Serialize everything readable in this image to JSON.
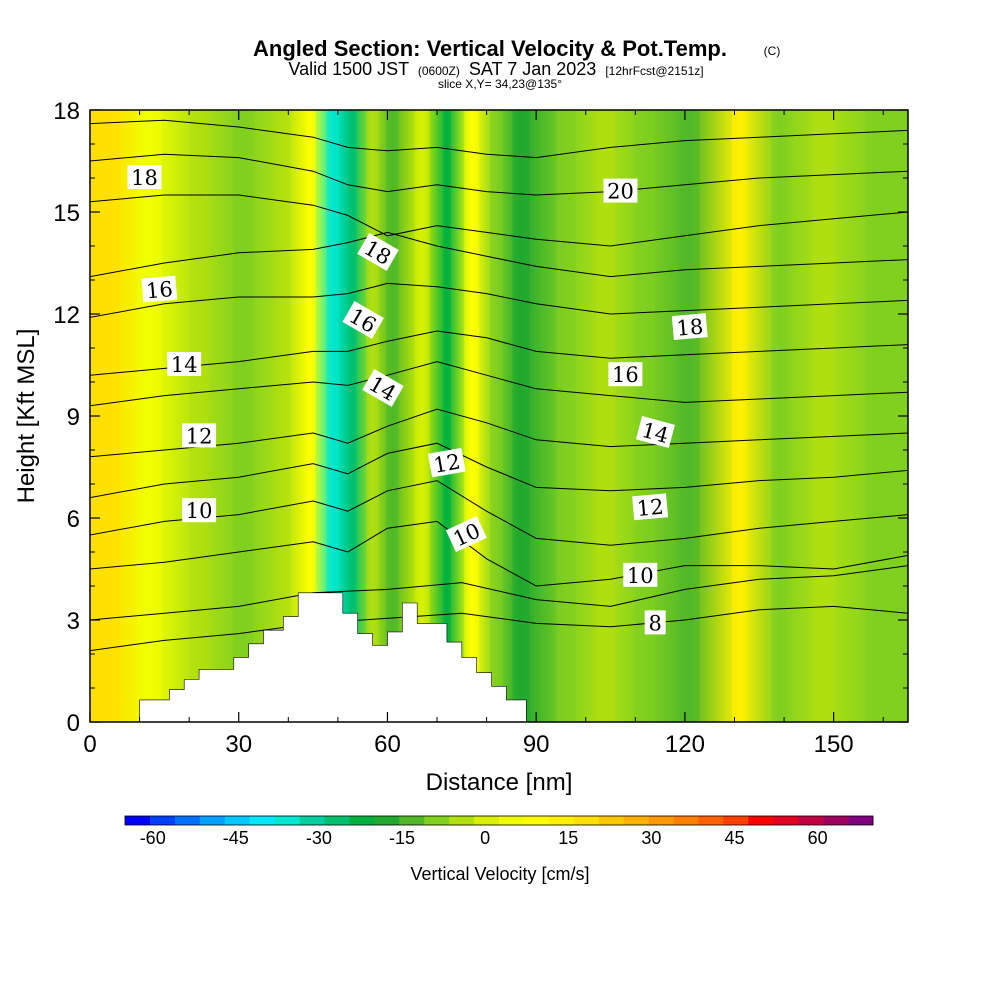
{
  "title": {
    "main": "Angled Section: Vertical Velocity & Pot.Temp.",
    "copyright": "(C)",
    "valid_prefix": "Valid 1500 JST",
    "valid_zulu": "(0600Z)",
    "valid_date": "SAT 7 Jan 2023",
    "forecast": "[12hrFcst@2151z]",
    "slice": "slice X,Y= 34,23@135°"
  },
  "chart_data": {
    "type": "contour-section",
    "xlabel": "Distance [nm]",
    "ylabel": "Height [Kft MSL]",
    "xlim": [
      0,
      165
    ],
    "ylim": [
      0,
      18
    ],
    "x_ticks": [
      0,
      30,
      60,
      90,
      120,
      150
    ],
    "y_ticks": [
      0,
      3,
      6,
      9,
      12,
      15,
      18
    ],
    "terrain": {
      "x": [
        0,
        10,
        10,
        16,
        16,
        19,
        19,
        22,
        22,
        29,
        29,
        32,
        32,
        35,
        35,
        39,
        39,
        42,
        42,
        51,
        51,
        54,
        54,
        57,
        57,
        60,
        60,
        63,
        63,
        66,
        66,
        72,
        72,
        75,
        75,
        78,
        78,
        81,
        81,
        84,
        84,
        88,
        88,
        165
      ],
      "height": [
        0,
        0,
        0.65,
        0.65,
        0.95,
        0.95,
        1.25,
        1.25,
        1.55,
        1.55,
        1.9,
        1.9,
        2.3,
        2.3,
        2.7,
        2.7,
        3.1,
        3.1,
        3.8,
        3.8,
        3.2,
        3.2,
        2.6,
        2.6,
        2.25,
        2.25,
        2.65,
        2.65,
        3.5,
        3.5,
        2.9,
        2.9,
        2.35,
        2.35,
        1.9,
        1.9,
        1.45,
        1.45,
        1.05,
        1.05,
        0.65,
        0.65,
        0,
        0
      ]
    },
    "colorbar": {
      "title": "Vertical Velocity [cm/s]",
      "tick_labels": [
        "-60",
        "-45",
        "-30",
        "-15",
        "0",
        "15",
        "30",
        "45",
        "60"
      ],
      "tick_values": [
        -60,
        -45,
        -30,
        -15,
        0,
        15,
        30,
        45,
        60
      ],
      "range": [
        -65,
        70
      ],
      "bin_width": 5,
      "colors": [
        "#0000ff",
        "#0040ff",
        "#0070ff",
        "#00a0ff",
        "#00c8ff",
        "#00e8ff",
        "#00e8d0",
        "#00d0a0",
        "#00c070",
        "#00b040",
        "#20a830",
        "#50b828",
        "#80d020",
        "#b0e010",
        "#d8f000",
        "#f0ff00",
        "#ffff00",
        "#fff000",
        "#ffe000",
        "#ffc800",
        "#ffb000",
        "#ff9800",
        "#ff8000",
        "#ff6000",
        "#ff4000",
        "#ff0000",
        "#e00020",
        "#c00040",
        "#a00060",
        "#800080"
      ]
    },
    "vertical_velocity_bands": [
      {
        "x_center": 4,
        "width": 8,
        "value": 25
      },
      {
        "x_center": 12,
        "width": 10,
        "value": 10
      },
      {
        "x_center": 22,
        "width": 8,
        "value": 2
      },
      {
        "x_center": 31,
        "width": 8,
        "value": -4
      },
      {
        "x_center": 39,
        "width": 6,
        "value": 2
      },
      {
        "x_center": 44.5,
        "width": 4,
        "value": 15
      },
      {
        "x_center": 49,
        "width": 5,
        "value": -32
      },
      {
        "x_center": 53,
        "width": 3,
        "value": -22
      },
      {
        "x_center": 57,
        "width": 5,
        "value": 2
      },
      {
        "x_center": 61,
        "width": 5,
        "value": -8
      },
      {
        "x_center": 67,
        "width": 6,
        "value": 6
      },
      {
        "x_center": 72,
        "width": 3,
        "value": -20
      },
      {
        "x_center": 77,
        "width": 6,
        "value": 18
      },
      {
        "x_center": 82,
        "width": 5,
        "value": -4
      },
      {
        "x_center": 87,
        "width": 7,
        "value": -12
      },
      {
        "x_center": 96,
        "width": 8,
        "value": -2
      },
      {
        "x_center": 104,
        "width": 8,
        "value": 4
      },
      {
        "x_center": 112,
        "width": 8,
        "value": -3
      },
      {
        "x_center": 121,
        "width": 8,
        "value": -6
      },
      {
        "x_center": 131,
        "width": 6,
        "value": 20
      },
      {
        "x_center": 139,
        "width": 6,
        "value": -5
      },
      {
        "x_center": 148,
        "width": 10,
        "value": 4
      },
      {
        "x_center": 159,
        "width": 10,
        "value": -4
      }
    ],
    "isentropes": [
      {
        "level": 8,
        "label": "8",
        "x": [
          0,
          15,
          30,
          45,
          55,
          65,
          75,
          90,
          105,
          120,
          135,
          150,
          165
        ],
        "height": [
          2.1,
          2.4,
          2.6,
          2.9,
          3.0,
          3.1,
          3.2,
          2.9,
          2.8,
          3.0,
          3.3,
          3.4,
          3.2
        ]
      },
      {
        "level": 9,
        "label": "",
        "x": [
          0,
          15,
          30,
          45,
          60,
          75,
          90,
          105,
          120,
          135,
          150,
          165
        ],
        "height": [
          3.0,
          3.2,
          3.4,
          3.8,
          3.9,
          4.1,
          3.6,
          3.4,
          3.9,
          4.2,
          4.3,
          4.6
        ]
      },
      {
        "level": 10,
        "label": "10",
        "x": [
          0,
          15,
          30,
          45,
          52,
          60,
          70,
          80,
          90,
          105,
          120,
          135,
          150,
          165
        ],
        "height": [
          4.5,
          4.7,
          5.0,
          5.3,
          5.0,
          5.7,
          5.9,
          4.8,
          4.0,
          4.2,
          4.6,
          4.6,
          4.5,
          4.9
        ]
      },
      {
        "level": 11,
        "label": "",
        "x": [
          0,
          15,
          30,
          45,
          52,
          60,
          70,
          80,
          90,
          105,
          120,
          135,
          150,
          165
        ],
        "height": [
          5.5,
          5.9,
          6.1,
          6.5,
          6.2,
          6.8,
          7.1,
          6.2,
          5.4,
          5.2,
          5.4,
          5.7,
          5.9,
          6.1
        ]
      },
      {
        "level": 12,
        "label": "12",
        "x": [
          0,
          15,
          30,
          45,
          52,
          60,
          70,
          80,
          90,
          105,
          120,
          135,
          150,
          165
        ],
        "height": [
          6.6,
          7.0,
          7.2,
          7.6,
          7.3,
          7.9,
          8.2,
          7.5,
          6.9,
          6.8,
          6.9,
          7.1,
          7.2,
          7.4
        ]
      },
      {
        "level": 13,
        "label": "",
        "x": [
          0,
          15,
          30,
          45,
          52,
          60,
          70,
          80,
          90,
          105,
          120,
          135,
          150,
          165
        ],
        "height": [
          7.8,
          8.0,
          8.2,
          8.5,
          8.2,
          8.7,
          9.2,
          8.8,
          8.3,
          8.1,
          8.2,
          8.3,
          8.4,
          8.5
        ]
      },
      {
        "level": 14,
        "label": "14",
        "x": [
          0,
          15,
          30,
          45,
          52,
          60,
          70,
          80,
          90,
          105,
          120,
          135,
          150,
          165
        ],
        "height": [
          9.3,
          9.6,
          9.8,
          10.0,
          9.9,
          10.2,
          10.6,
          10.2,
          9.8,
          9.6,
          9.4,
          9.5,
          9.6,
          9.7
        ]
      },
      {
        "level": 15,
        "label": "",
        "x": [
          0,
          15,
          30,
          45,
          52,
          60,
          70,
          80,
          90,
          105,
          120,
          135,
          150,
          165
        ],
        "height": [
          10.2,
          10.4,
          10.6,
          10.9,
          10.9,
          11.2,
          11.5,
          11.3,
          10.9,
          10.7,
          10.8,
          10.9,
          11.0,
          11.1
        ]
      },
      {
        "level": 16,
        "label": "16",
        "x": [
          0,
          15,
          30,
          45,
          52,
          60,
          70,
          80,
          90,
          105,
          120,
          135,
          150,
          165
        ],
        "height": [
          11.9,
          12.3,
          12.5,
          12.5,
          12.6,
          12.9,
          12.8,
          12.6,
          12.3,
          12.0,
          12.1,
          12.2,
          12.3,
          12.4
        ]
      },
      {
        "level": 17,
        "label": "",
        "x": [
          0,
          15,
          30,
          45,
          52,
          60,
          70,
          80,
          90,
          105,
          120,
          135,
          150,
          165
        ],
        "height": [
          13.1,
          13.5,
          13.8,
          13.9,
          14.1,
          14.4,
          14.0,
          13.7,
          13.4,
          13.1,
          13.3,
          13.4,
          13.5,
          13.6
        ]
      },
      {
        "level": 18,
        "label": "18",
        "x": [
          0,
          15,
          30,
          45,
          52,
          60,
          70,
          80,
          90,
          105,
          120,
          135,
          150,
          165
        ],
        "height": [
          15.3,
          15.5,
          15.5,
          15.2,
          14.9,
          14.3,
          14.6,
          14.4,
          14.2,
          14.0,
          14.3,
          14.6,
          14.8,
          15.0
        ]
      },
      {
        "level": 19,
        "label": "",
        "x": [
          0,
          15,
          30,
          45,
          52,
          60,
          70,
          80,
          90,
          105,
          120,
          135,
          150,
          165
        ],
        "height": [
          16.5,
          16.7,
          16.6,
          16.2,
          15.8,
          15.6,
          15.8,
          15.6,
          15.5,
          15.6,
          15.8,
          16.0,
          16.1,
          16.2
        ]
      },
      {
        "level": 20,
        "label": "20",
        "x": [
          0,
          15,
          30,
          45,
          52,
          60,
          70,
          80,
          90,
          105,
          120,
          135,
          150,
          165
        ],
        "height": [
          17.6,
          17.7,
          17.5,
          17.2,
          16.9,
          16.8,
          16.9,
          16.7,
          16.6,
          16.9,
          17.1,
          17.2,
          17.3,
          17.4
        ]
      }
    ],
    "contour_labels": [
      {
        "text": "18",
        "x": 11,
        "height": 16.0,
        "angle": 0
      },
      {
        "text": "16",
        "x": 14,
        "height": 12.7,
        "angle": -5
      },
      {
        "text": "14",
        "x": 19,
        "height": 10.5,
        "angle": 0
      },
      {
        "text": "12",
        "x": 22,
        "height": 8.4,
        "angle": 0
      },
      {
        "text": "10",
        "x": 22,
        "height": 6.2,
        "angle": 0
      },
      {
        "text": "18",
        "x": 58,
        "height": 13.8,
        "angle": 30
      },
      {
        "text": "16",
        "x": 55,
        "height": 11.8,
        "angle": 30
      },
      {
        "text": "14",
        "x": 59,
        "height": 9.8,
        "angle": 30
      },
      {
        "text": "12",
        "x": 72,
        "height": 7.6,
        "angle": -10
      },
      {
        "text": "10",
        "x": 76,
        "height": 5.5,
        "angle": -25
      },
      {
        "text": "20",
        "x": 107,
        "height": 15.6,
        "angle": 0
      },
      {
        "text": "18",
        "x": 121,
        "height": 11.6,
        "angle": -5
      },
      {
        "text": "16",
        "x": 108,
        "height": 10.2,
        "angle": 0
      },
      {
        "text": "14",
        "x": 114,
        "height": 8.5,
        "angle": 15
      },
      {
        "text": "12",
        "x": 113,
        "height": 6.3,
        "angle": -5
      },
      {
        "text": "10",
        "x": 111,
        "height": 4.3,
        "angle": 0
      },
      {
        "text": "8",
        "x": 114,
        "height": 2.9,
        "angle": 0
      }
    ]
  }
}
